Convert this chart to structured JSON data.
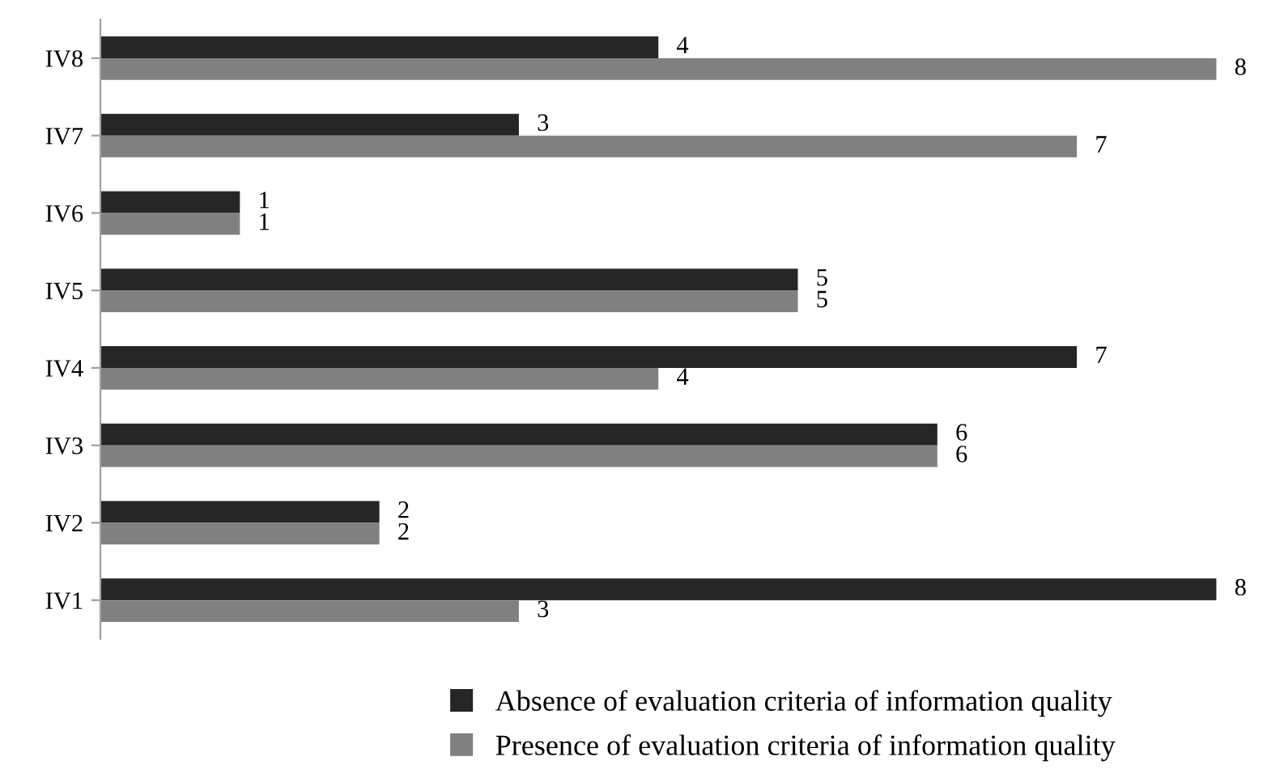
{
  "chart_data": {
    "type": "bar",
    "orientation": "horizontal",
    "categories": [
      "IV8",
      "IV7",
      "IV6",
      "IV5",
      "IV4",
      "IV3",
      "IV2",
      "IV1"
    ],
    "series": [
      {
        "name": "Absence of evaluation criteria of information quality",
        "color": "#262626",
        "values": [
          4,
          3,
          1,
          5,
          7,
          6,
          2,
          8
        ]
      },
      {
        "name": "Presence of evaluation criteria of information quality",
        "color": "#808080",
        "values": [
          8,
          7,
          1,
          5,
          4,
          6,
          2,
          3
        ]
      }
    ],
    "data_labels": true,
    "legend": "bottom",
    "tick_labels": "y"
  }
}
